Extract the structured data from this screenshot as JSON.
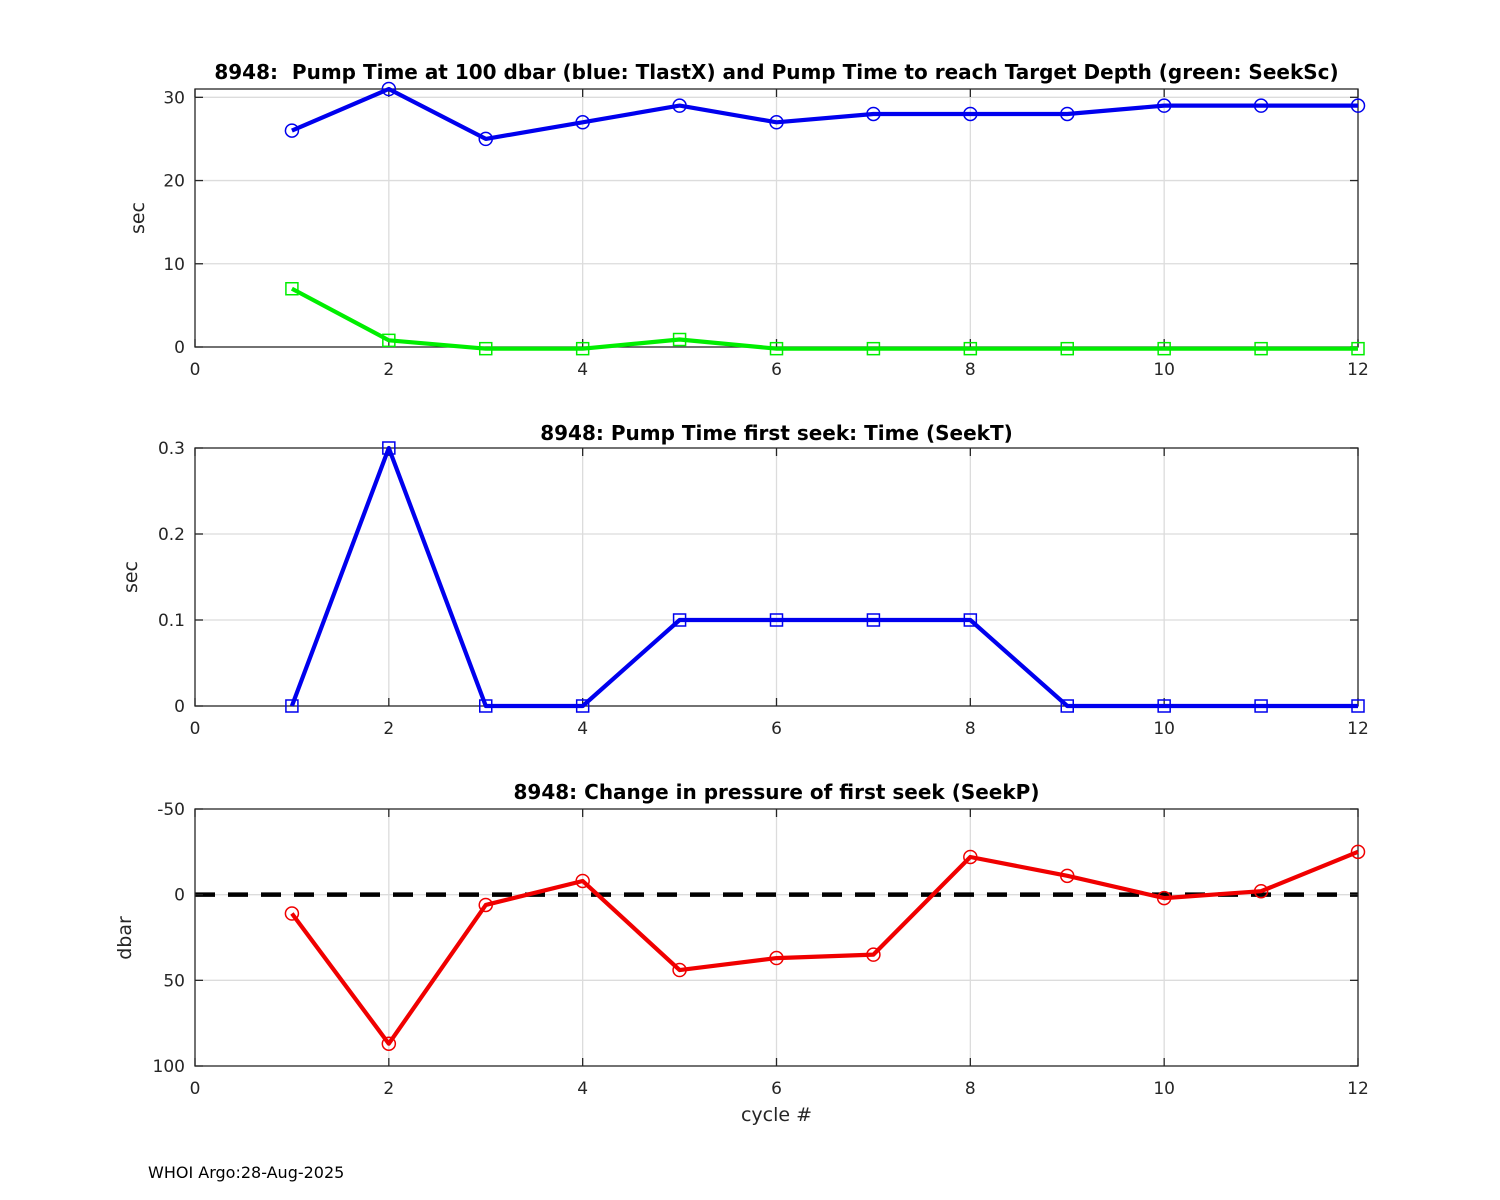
{
  "footer": {
    "text": "WHOI Argo:28-Aug-2025"
  },
  "colors": {
    "tlastx_blue": "#0000EE",
    "seeksc_green": "#00EE00",
    "seekt_blue": "#0000EE",
    "seekp_red": "#F00000",
    "zero_line_black": "#000000",
    "grid_gray": "#DCDCDC",
    "axis_dark": "#262626"
  },
  "chart_data": [
    {
      "type": "line",
      "title": "8948:  Pump Time at 100 dbar (blue: TlastX) and Pump Time to reach Target Depth (green: SeekSc)",
      "xlabel": "",
      "ylabel": "sec",
      "x": [
        1,
        2,
        3,
        4,
        5,
        6,
        7,
        8,
        9,
        10,
        11,
        12
      ],
      "xlim": [
        0,
        12
      ],
      "xticks": [
        0,
        2,
        4,
        6,
        8,
        10,
        12
      ],
      "ylim": [
        0,
        31
      ],
      "yticks": [
        0,
        10,
        20,
        30
      ],
      "grid": true,
      "legend": "none",
      "series": [
        {
          "name": "TlastX",
          "color": "#0000EE",
          "marker": "circle",
          "values": [
            26,
            31,
            25,
            27,
            29,
            27,
            28,
            28,
            28,
            29,
            29,
            29
          ]
        },
        {
          "name": "SeekSc",
          "color": "#00EE00",
          "marker": "square",
          "values": [
            7,
            0.8,
            -0.2,
            -0.2,
            0.9,
            -0.2,
            -0.2,
            -0.2,
            -0.2,
            -0.2,
            -0.2,
            -0.2
          ]
        }
      ]
    },
    {
      "type": "line",
      "title": "8948: Pump Time first seek: Time (SeekT)",
      "xlabel": "",
      "ylabel": "sec",
      "x": [
        1,
        2,
        3,
        4,
        5,
        6,
        7,
        8,
        9,
        10,
        11,
        12
      ],
      "xlim": [
        0,
        12
      ],
      "xticks": [
        0,
        2,
        4,
        6,
        8,
        10,
        12
      ],
      "ylim": [
        0,
        0.3
      ],
      "yticks": [
        0,
        0.1,
        0.2,
        0.3
      ],
      "grid": true,
      "legend": "none",
      "series": [
        {
          "name": "SeekT",
          "color": "#0000EE",
          "marker": "square",
          "values": [
            0,
            0.3,
            0,
            0,
            0.1,
            0.1,
            0.1,
            0.1,
            0,
            0,
            0,
            0
          ]
        }
      ]
    },
    {
      "type": "line",
      "title": "8948: Change in pressure of first seek (SeekP)",
      "xlabel": "cycle #",
      "ylabel": "dbar",
      "x": [
        1,
        2,
        3,
        4,
        5,
        6,
        7,
        8,
        9,
        10,
        11,
        12
      ],
      "xlim": [
        0,
        12
      ],
      "xticks": [
        0,
        2,
        4,
        6,
        8,
        10,
        12
      ],
      "ylim": [
        -50,
        100
      ],
      "y_reversed": true,
      "yticks": [
        -50,
        0,
        50,
        100
      ],
      "grid": true,
      "legend": "none",
      "zero_line": {
        "value": 0,
        "style": "dashed",
        "color": "#000000"
      },
      "series": [
        {
          "name": "SeekP",
          "color": "#F00000",
          "marker": "circle",
          "values": [
            11,
            87,
            6,
            -8,
            44,
            37,
            35,
            -22,
            -11,
            2,
            -2,
            -25
          ]
        }
      ]
    }
  ]
}
